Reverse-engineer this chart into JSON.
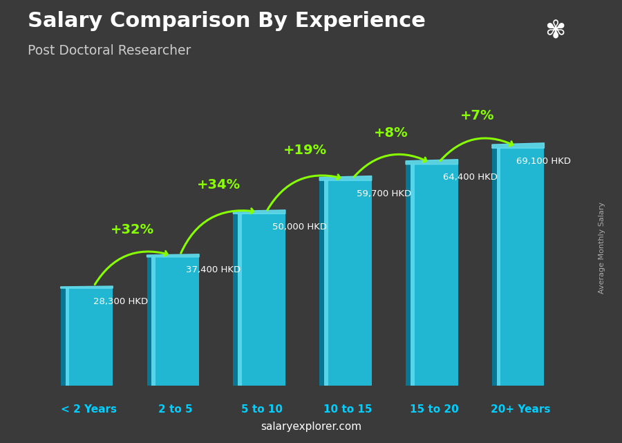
{
  "title": "Salary Comparison By Experience",
  "subtitle": "Post Doctoral Researcher",
  "categories": [
    "< 2 Years",
    "2 to 5",
    "5 to 10",
    "10 to 15",
    "15 to 20",
    "20+ Years"
  ],
  "values": [
    28300,
    37400,
    50000,
    59700,
    64400,
    69100
  ],
  "pct_changes": [
    "+32%",
    "+34%",
    "+19%",
    "+8%",
    "+7%"
  ],
  "salary_labels": [
    "28,300 HKD",
    "37,400 HKD",
    "50,000 HKD",
    "59,700 HKD",
    "64,400 HKD",
    "69,100 HKD"
  ],
  "bar_face_color": "#1EC8E8",
  "bar_side_color": "#0080A0",
  "bar_top_color": "#60DDEE",
  "bar_highlight_color": "#80EEFF",
  "ylabel": "Average Monthly Salary",
  "watermark": "salaryexplorer.com",
  "bg_color": "#3a3a3a",
  "title_color": "#FFFFFF",
  "subtitle_color": "#CCCCCC",
  "xlabel_color": "#00CFFF",
  "pct_color": "#88FF00",
  "salary_label_color": "#FFFFFF",
  "watermark_color": "#FFFFFF",
  "flag_bg": "#C8102E",
  "arrow_color": "#88FF00"
}
